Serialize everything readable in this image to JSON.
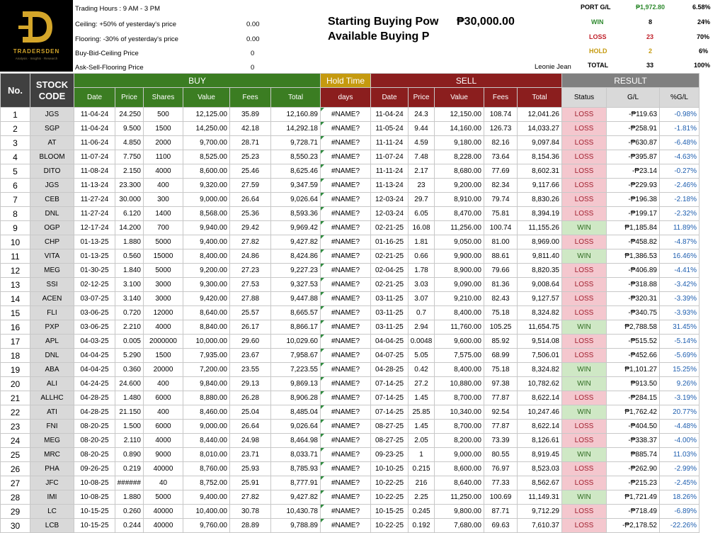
{
  "brand": {
    "name": "TRADERSDEN",
    "tagline": "Analysis · Insights · Research"
  },
  "info": {
    "trading_hours": "Trading Hours : 9 AM - 3 PM",
    "ceiling_label": "Ceiling: +50% of yesterday's price",
    "ceiling_value": "0.00",
    "flooring_label": "Flooring: -30% of yesterday's price",
    "flooring_value": "0.00",
    "buy_ceiling_label": "Buy-Bid-Ceiling Price",
    "buy_ceiling_value": "0",
    "ask_floor_label": "Ask-Sell-Flooring Price",
    "ask_floor_value": "0"
  },
  "buying_power": {
    "starting_label": "Starting Buying Pow",
    "starting_value": "₱30,000.00",
    "available_label": "Available Buying P"
  },
  "trader": "Leonie Jean",
  "summary": {
    "port_label": "PORT G/L",
    "port_value": "₱1,972.80",
    "port_pct": "6.58%",
    "win_label": "WIN",
    "win_count": "8",
    "win_pct": "24%",
    "loss_label": "LOSS",
    "loss_count": "23",
    "loss_pct": "70%",
    "hold_label": "HOLD",
    "hold_count": "2",
    "hold_pct": "6%",
    "total_label": "TOTAL",
    "total_count": "33",
    "total_pct": "100%",
    "colors": {
      "win": "#2f8a2f",
      "loss": "#c0202a",
      "hold": "#c59a0f"
    }
  },
  "headers": {
    "no": "No.",
    "stock_code": "STOCK CODE",
    "buy": "BUY",
    "hold_time": "Hold Time",
    "sell": "SELL",
    "result": "RESULT",
    "buy_cols": [
      "Date",
      "Price",
      "Shares",
      "Value",
      "Fees",
      "Total"
    ],
    "hold_col": "days",
    "sell_cols": [
      "Date",
      "Price",
      "Value",
      "Fees",
      "Total"
    ],
    "result_cols": [
      "Status",
      "G/L",
      "%G/L"
    ]
  },
  "rows": [
    [
      "1",
      "JGS",
      "11-04-24",
      "24.250",
      "500",
      "12,125.00",
      "35.89",
      "12,160.89",
      "#NAME?",
      "11-04-24",
      "24.3",
      "12,150.00",
      "108.74",
      "12,041.26",
      "LOSS",
      "-₱119.63",
      "-0.98%"
    ],
    [
      "2",
      "SGP",
      "11-04-24",
      "9.500",
      "1500",
      "14,250.00",
      "42.18",
      "14,292.18",
      "#NAME?",
      "11-05-24",
      "9.44",
      "14,160.00",
      "126.73",
      "14,033.27",
      "LOSS",
      "-₱258.91",
      "-1.81%"
    ],
    [
      "3",
      "AT",
      "11-06-24",
      "4.850",
      "2000",
      "9,700.00",
      "28.71",
      "9,728.71",
      "#NAME?",
      "11-11-24",
      "4.59",
      "9,180.00",
      "82.16",
      "9,097.84",
      "LOSS",
      "-₱630.87",
      "-6.48%"
    ],
    [
      "4",
      "BLOOM",
      "11-07-24",
      "7.750",
      "1100",
      "8,525.00",
      "25.23",
      "8,550.23",
      "#NAME?",
      "11-07-24",
      "7.48",
      "8,228.00",
      "73.64",
      "8,154.36",
      "LOSS",
      "-₱395.87",
      "-4.63%"
    ],
    [
      "5",
      "DITO",
      "11-08-24",
      "2.150",
      "4000",
      "8,600.00",
      "25.46",
      "8,625.46",
      "#NAME?",
      "11-11-24",
      "2.17",
      "8,680.00",
      "77.69",
      "8,602.31",
      "LOSS",
      "-₱23.14",
      "-0.27%"
    ],
    [
      "6",
      "JGS",
      "11-13-24",
      "23.300",
      "400",
      "9,320.00",
      "27.59",
      "9,347.59",
      "#NAME?",
      "11-13-24",
      "23",
      "9,200.00",
      "82.34",
      "9,117.66",
      "LOSS",
      "-₱229.93",
      "-2.46%"
    ],
    [
      "7",
      "CEB",
      "11-27-24",
      "30.000",
      "300",
      "9,000.00",
      "26.64",
      "9,026.64",
      "#NAME?",
      "12-03-24",
      "29.7",
      "8,910.00",
      "79.74",
      "8,830.26",
      "LOSS",
      "-₱196.38",
      "-2.18%"
    ],
    [
      "8",
      "DNL",
      "11-27-24",
      "6.120",
      "1400",
      "8,568.00",
      "25.36",
      "8,593.36",
      "#NAME?",
      "12-03-24",
      "6.05",
      "8,470.00",
      "75.81",
      "8,394.19",
      "LOSS",
      "-₱199.17",
      "-2.32%"
    ],
    [
      "9",
      "OGP",
      "12-17-24",
      "14.200",
      "700",
      "9,940.00",
      "29.42",
      "9,969.42",
      "#NAME?",
      "02-21-25",
      "16.08",
      "11,256.00",
      "100.74",
      "11,155.26",
      "WIN",
      "₱1,185.84",
      "11.89%"
    ],
    [
      "10",
      "CHP",
      "01-13-25",
      "1.880",
      "5000",
      "9,400.00",
      "27.82",
      "9,427.82",
      "#NAME?",
      "01-16-25",
      "1.81",
      "9,050.00",
      "81.00",
      "8,969.00",
      "LOSS",
      "-₱458.82",
      "-4.87%"
    ],
    [
      "11",
      "VITA",
      "01-13-25",
      "0.560",
      "15000",
      "8,400.00",
      "24.86",
      "8,424.86",
      "#NAME?",
      "02-21-25",
      "0.66",
      "9,900.00",
      "88.61",
      "9,811.40",
      "WIN",
      "₱1,386.53",
      "16.46%"
    ],
    [
      "12",
      "MEG",
      "01-30-25",
      "1.840",
      "5000",
      "9,200.00",
      "27.23",
      "9,227.23",
      "#NAME?",
      "02-04-25",
      "1.78",
      "8,900.00",
      "79.66",
      "8,820.35",
      "LOSS",
      "-₱406.89",
      "-4.41%"
    ],
    [
      "13",
      "SSI",
      "02-12-25",
      "3.100",
      "3000",
      "9,300.00",
      "27.53",
      "9,327.53",
      "#NAME?",
      "02-21-25",
      "3.03",
      "9,090.00",
      "81.36",
      "9,008.64",
      "LOSS",
      "-₱318.88",
      "-3.42%"
    ],
    [
      "14",
      "ACEN",
      "03-07-25",
      "3.140",
      "3000",
      "9,420.00",
      "27.88",
      "9,447.88",
      "#NAME?",
      "03-11-25",
      "3.07",
      "9,210.00",
      "82.43",
      "9,127.57",
      "LOSS",
      "-₱320.31",
      "-3.39%"
    ],
    [
      "15",
      "FLI",
      "03-06-25",
      "0.720",
      "12000",
      "8,640.00",
      "25.57",
      "8,665.57",
      "#NAME?",
      "03-11-25",
      "0.7",
      "8,400.00",
      "75.18",
      "8,324.82",
      "LOSS",
      "-₱340.75",
      "-3.93%"
    ],
    [
      "16",
      "PXP",
      "03-06-25",
      "2.210",
      "4000",
      "8,840.00",
      "26.17",
      "8,866.17",
      "#NAME?",
      "03-11-25",
      "2.94",
      "11,760.00",
      "105.25",
      "11,654.75",
      "WIN",
      "₱2,788.58",
      "31.45%"
    ],
    [
      "17",
      "APL",
      "04-03-25",
      "0.005",
      "2000000",
      "10,000.00",
      "29.60",
      "10,029.60",
      "#NAME?",
      "04-04-25",
      "0.0048",
      "9,600.00",
      "85.92",
      "9,514.08",
      "LOSS",
      "-₱515.52",
      "-5.14%"
    ],
    [
      "18",
      "DNL",
      "04-04-25",
      "5.290",
      "1500",
      "7,935.00",
      "23.67",
      "7,958.67",
      "#NAME?",
      "04-07-25",
      "5.05",
      "7,575.00",
      "68.99",
      "7,506.01",
      "LOSS",
      "-₱452.66",
      "-5.69%"
    ],
    [
      "19",
      "ABA",
      "04-04-25",
      "0.360",
      "20000",
      "7,200.00",
      "23.55",
      "7,223.55",
      "#NAME?",
      "04-28-25",
      "0.42",
      "8,400.00",
      "75.18",
      "8,324.82",
      "WIN",
      "₱1,101.27",
      "15.25%"
    ],
    [
      "20",
      "ALI",
      "04-24-25",
      "24.600",
      "400",
      "9,840.00",
      "29.13",
      "9,869.13",
      "#NAME?",
      "07-14-25",
      "27.2",
      "10,880.00",
      "97.38",
      "10,782.62",
      "WIN",
      "₱913.50",
      "9.26%"
    ],
    [
      "21",
      "ALLHC",
      "04-28-25",
      "1.480",
      "6000",
      "8,880.00",
      "26.28",
      "8,906.28",
      "#NAME?",
      "07-14-25",
      "1.45",
      "8,700.00",
      "77.87",
      "8,622.14",
      "LOSS",
      "-₱284.15",
      "-3.19%"
    ],
    [
      "22",
      "ATI",
      "04-28-25",
      "21.150",
      "400",
      "8,460.00",
      "25.04",
      "8,485.04",
      "#NAME?",
      "07-14-25",
      "25.85",
      "10,340.00",
      "92.54",
      "10,247.46",
      "WIN",
      "₱1,762.42",
      "20.77%"
    ],
    [
      "23",
      "FNI",
      "08-20-25",
      "1.500",
      "6000",
      "9,000.00",
      "26.64",
      "9,026.64",
      "#NAME?",
      "08-27-25",
      "1.45",
      "8,700.00",
      "77.87",
      "8,622.14",
      "LOSS",
      "-₱404.50",
      "-4.48%"
    ],
    [
      "24",
      "MEG",
      "08-20-25",
      "2.110",
      "4000",
      "8,440.00",
      "24.98",
      "8,464.98",
      "#NAME?",
      "08-27-25",
      "2.05",
      "8,200.00",
      "73.39",
      "8,126.61",
      "LOSS",
      "-₱338.37",
      "-4.00%"
    ],
    [
      "25",
      "MRC",
      "08-20-25",
      "0.890",
      "9000",
      "8,010.00",
      "23.71",
      "8,033.71",
      "#NAME?",
      "09-23-25",
      "1",
      "9,000.00",
      "80.55",
      "8,919.45",
      "WIN",
      "₱885.74",
      "11.03%"
    ],
    [
      "26",
      "PHA",
      "09-26-25",
      "0.219",
      "40000",
      "8,760.00",
      "25.93",
      "8,785.93",
      "#NAME?",
      "10-10-25",
      "0.215",
      "8,600.00",
      "76.97",
      "8,523.03",
      "LOSS",
      "-₱262.90",
      "-2.99%"
    ],
    [
      "27",
      "JFC",
      "10-08-25",
      "######",
      "40",
      "8,752.00",
      "25.91",
      "8,777.91",
      "#NAME?",
      "10-22-25",
      "216",
      "8,640.00",
      "77.33",
      "8,562.67",
      "LOSS",
      "-₱215.23",
      "-2.45%"
    ],
    [
      "28",
      "IMI",
      "10-08-25",
      "1.880",
      "5000",
      "9,400.00",
      "27.82",
      "9,427.82",
      "#NAME?",
      "10-22-25",
      "2.25",
      "11,250.00",
      "100.69",
      "11,149.31",
      "WIN",
      "₱1,721.49",
      "18.26%"
    ],
    [
      "29",
      "LC",
      "10-15-25",
      "0.260",
      "40000",
      "10,400.00",
      "30.78",
      "10,430.78",
      "#NAME?",
      "10-15-25",
      "0.245",
      "9,800.00",
      "87.71",
      "9,712.29",
      "LOSS",
      "-₱718.49",
      "-6.89%"
    ],
    [
      "30",
      "LCB",
      "10-15-25",
      "0.244",
      "40000",
      "9,760.00",
      "28.89",
      "9,788.89",
      "#NAME?",
      "10-22-25",
      "0.192",
      "7,680.00",
      "69.63",
      "7,610.37",
      "LOSS",
      "-₱2,178.52",
      "-22.26%"
    ]
  ]
}
